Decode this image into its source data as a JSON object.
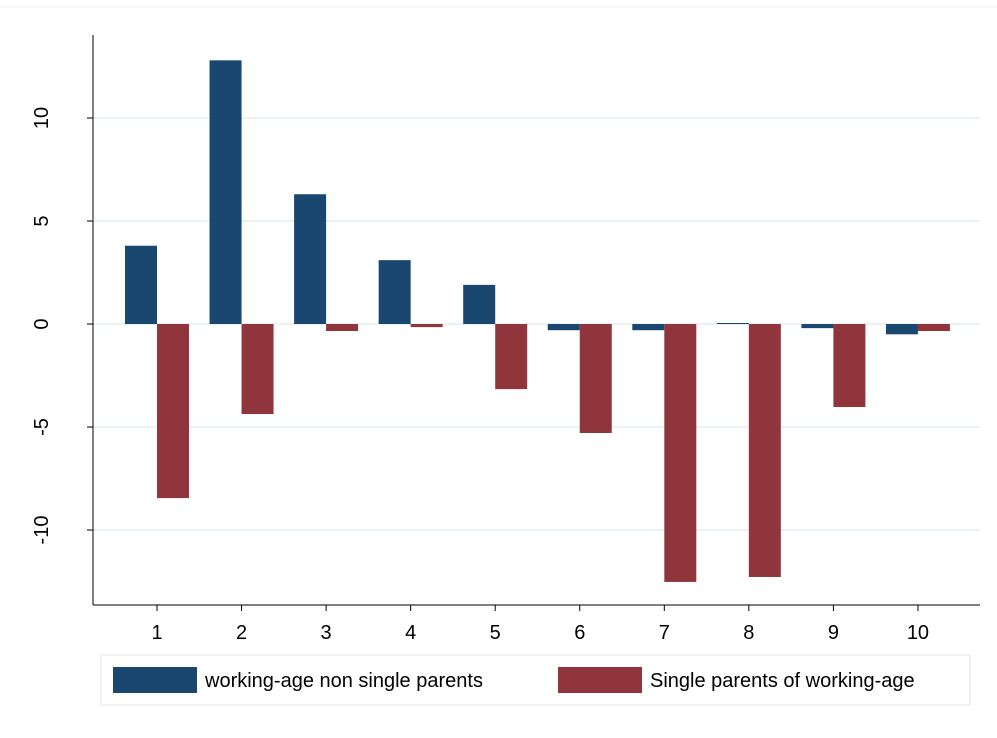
{
  "chart_data": {
    "type": "bar",
    "categories": [
      "1",
      "2",
      "3",
      "4",
      "5",
      "6",
      "7",
      "8",
      "9",
      "10"
    ],
    "series": [
      {
        "name": "working-age non single parents",
        "color": "#1a476f",
        "values": [
          3.8,
          12.8,
          6.3,
          3.1,
          1.9,
          -0.3,
          -0.3,
          0.05,
          -0.2,
          -0.5
        ]
      },
      {
        "name": "Single parents of working-age",
        "color": "#90353b",
        "values": [
          -8.45,
          -4.37,
          -0.34,
          -0.15,
          -3.16,
          -5.29,
          -12.52,
          -12.28,
          -4.03,
          -0.34
        ]
      }
    ],
    "ylim": [
      -13.64,
      14.03
    ],
    "yticks": [
      -10,
      -5,
      0,
      5,
      10
    ],
    "grid": true,
    "legend": "bottom"
  }
}
